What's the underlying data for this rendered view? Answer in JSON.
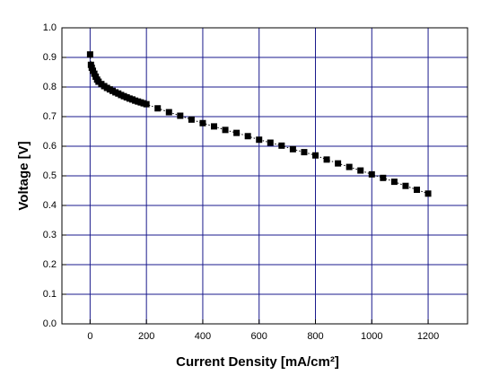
{
  "chart_data": {
    "type": "scatter",
    "x_label": "Current Density [mA/cm²]",
    "y_label": "Voltage [V]",
    "x": [
      0,
      3,
      6,
      10,
      15,
      20,
      25,
      30,
      40,
      50,
      60,
      70,
      80,
      90,
      100,
      110,
      120,
      130,
      140,
      150,
      160,
      170,
      180,
      190,
      200,
      240,
      280,
      320,
      360,
      400,
      440,
      480,
      520,
      560,
      600,
      640,
      680,
      720,
      760,
      800,
      840,
      880,
      920,
      960,
      1000,
      1040,
      1080,
      1120,
      1160,
      1200
    ],
    "y": [
      0.91,
      0.875,
      0.865,
      0.855,
      0.845,
      0.835,
      0.825,
      0.818,
      0.81,
      0.803,
      0.797,
      0.792,
      0.787,
      0.782,
      0.778,
      0.773,
      0.769,
      0.765,
      0.761,
      0.758,
      0.754,
      0.751,
      0.748,
      0.745,
      0.742,
      0.728,
      0.715,
      0.703,
      0.69,
      0.678,
      0.667,
      0.655,
      0.645,
      0.634,
      0.622,
      0.612,
      0.602,
      0.59,
      0.58,
      0.569,
      0.555,
      0.542,
      0.53,
      0.518,
      0.505,
      0.493,
      0.48,
      0.466,
      0.453,
      0.44
    ],
    "color": "#000000",
    "line_style": "dotted",
    "grid": true,
    "grid_color": "#1a1a8c",
    "xlim": [
      -100,
      1340
    ],
    "xticks": [
      0,
      200,
      400,
      600,
      800,
      1000,
      1200
    ],
    "ylim": [
      0,
      1
    ],
    "yticks": [
      {
        "value": 0,
        "label": "0.0"
      },
      0.1,
      0.2,
      0.3,
      0.4,
      0.5,
      0.6,
      0.7,
      0.8,
      0.9,
      {
        "value": 1,
        "label": "1.0"
      }
    ]
  }
}
